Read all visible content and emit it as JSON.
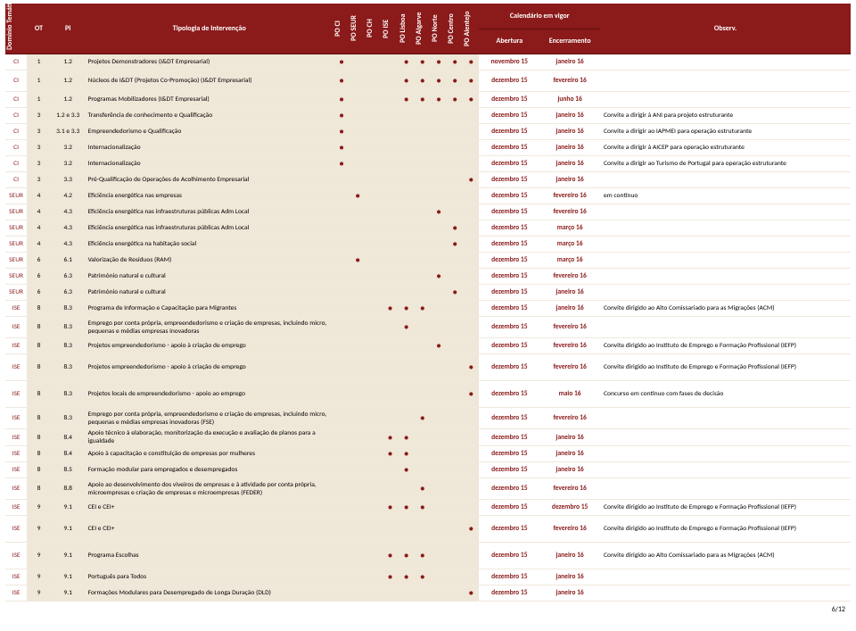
{
  "headers": {
    "dominio": "Domínio Temático",
    "ot": "OT",
    "pi": "PI",
    "tipologia": "Tipologia de Intervenção",
    "po": [
      "PO CI",
      "PO SEUR",
      "PO CH",
      "PO ISE",
      "PO Lisboa",
      "PO Algarve",
      "PO Norte",
      "PO Centro",
      "PO Alentejo"
    ],
    "calendario": "Calendário em vigor",
    "abertura": "Abertura",
    "encerramento": "Encerramento",
    "observ": "Observ."
  },
  "rows": [
    {
      "d": "CI",
      "ot": "1",
      "pi": "1.2",
      "tip": "Projetos Demonstradores (I&DT Empresarial)",
      "po": [
        1,
        0,
        0,
        0,
        1,
        1,
        1,
        1,
        1
      ],
      "ab": "novembro 15",
      "en": "janeiro 16",
      "obs": ""
    },
    {
      "d": "CI",
      "ot": "1",
      "pi": "1.2",
      "tip": "Núcleos de I&DT\n(Projetos  Co-Promoção)  (I&DT Empresarial)",
      "po": [
        1,
        0,
        0,
        0,
        1,
        1,
        1,
        1,
        1
      ],
      "ab": "dezembro 15",
      "en": "fevereiro 16",
      "obs": "",
      "tall": 1
    },
    {
      "d": "CI",
      "ot": "1",
      "pi": "1.2",
      "tip": "Programas Mobilizadores (I&DT Empresarial)",
      "po": [
        1,
        0,
        0,
        0,
        1,
        1,
        1,
        1,
        1
      ],
      "ab": "dezembro 15",
      "en": "junho 16",
      "obs": ""
    },
    {
      "d": "CI",
      "ot": "3",
      "pi": "1.2 e 3.3",
      "tip": "Transferência de conhecimento e Qualificação",
      "po": [
        1,
        0,
        0,
        0,
        0,
        0,
        0,
        0,
        0
      ],
      "ab": "dezembro 15",
      "en": "janeiro 16",
      "obs": "Convite a dirigir à ANI para projeto estruturante"
    },
    {
      "d": "CI",
      "ot": "3",
      "pi": "3.1 e 3.3",
      "tip": "Empreendedorismo e Qualificação",
      "po": [
        1,
        0,
        0,
        0,
        0,
        0,
        0,
        0,
        0
      ],
      "ab": "dezembro 15",
      "en": "janeiro 16",
      "obs": "Convite a dirigir ao IAPMEI para operação estruturante"
    },
    {
      "d": "CI",
      "ot": "3",
      "pi": "3.2",
      "tip": "Internacionalização",
      "po": [
        1,
        0,
        0,
        0,
        0,
        0,
        0,
        0,
        0
      ],
      "ab": "dezembro 15",
      "en": "janeiro 16",
      "obs": "Convite a dirigir à AICEP para operação estruturante"
    },
    {
      "d": "CI",
      "ot": "3",
      "pi": "3.2",
      "tip": "Internacionalização",
      "po": [
        1,
        0,
        0,
        0,
        0,
        0,
        0,
        0,
        0
      ],
      "ab": "dezembro 15",
      "en": "janeiro 16",
      "obs": "Convite a dirigir ao Turismo de Portugal para operação estruturante"
    },
    {
      "d": "CI",
      "ot": "3",
      "pi": "3.3",
      "tip": "Pré-Qualificação de Operações de Acolhimento Empresarial",
      "po": [
        0,
        0,
        0,
        0,
        0,
        0,
        0,
        0,
        1
      ],
      "ab": "dezembro 15",
      "en": "janeiro 16",
      "obs": ""
    },
    {
      "d": "SEUR",
      "ot": "4",
      "pi": "4.2",
      "tip": "Eficiência energética nas empresas",
      "po": [
        0,
        1,
        0,
        0,
        0,
        0,
        0,
        0,
        0
      ],
      "ab": "dezembro 15",
      "en": "fevereiro 16",
      "obs": "em contínuo"
    },
    {
      "d": "SEUR",
      "ot": "4",
      "pi": "4.3",
      "tip": "Eficiência energética nas infraestruturas públicas Adm Local",
      "po": [
        0,
        0,
        0,
        0,
        0,
        0,
        1,
        0,
        0
      ],
      "ab": "dezembro 15",
      "en": "fevereiro 16",
      "obs": ""
    },
    {
      "d": "SEUR",
      "ot": "4",
      "pi": "4.3",
      "tip": "Eficiência energética nas infraestruturas públicas Adm Local",
      "po": [
        0,
        0,
        0,
        0,
        0,
        0,
        0,
        1,
        0
      ],
      "ab": "dezembro 15",
      "en": "março 16",
      "obs": ""
    },
    {
      "d": "SEUR",
      "ot": "4",
      "pi": "4.3",
      "tip": "Eficiência energética na habitação social",
      "po": [
        0,
        0,
        0,
        0,
        0,
        0,
        0,
        1,
        0
      ],
      "ab": "dezembro 15",
      "en": "março 16",
      "obs": ""
    },
    {
      "d": "SEUR",
      "ot": "6",
      "pi": "6.1",
      "tip": "Valorização de Resíduos (RAM)",
      "po": [
        0,
        1,
        0,
        0,
        0,
        0,
        0,
        0,
        0
      ],
      "ab": "dezembro 15",
      "en": "março 16",
      "obs": ""
    },
    {
      "d": "SEUR",
      "ot": "6",
      "pi": "6.3",
      "tip": "Património natural e cultural",
      "po": [
        0,
        0,
        0,
        0,
        0,
        0,
        1,
        0,
        0
      ],
      "ab": "dezembro 15",
      "en": "fevereiro 16",
      "obs": ""
    },
    {
      "d": "SEUR",
      "ot": "6",
      "pi": "6.3",
      "tip": "Património natural e cultural",
      "po": [
        0,
        0,
        0,
        0,
        0,
        0,
        0,
        1,
        0
      ],
      "ab": "dezembro 15",
      "en": "janeiro 16",
      "obs": ""
    },
    {
      "d": "ISE",
      "ot": "8",
      "pi": "8.3",
      "tip": "Programa de Informação e Capacitação para Migrantes",
      "po": [
        0,
        0,
        0,
        1,
        1,
        1,
        0,
        0,
        0
      ],
      "ab": "dezembro 15",
      "en": "janeiro 16",
      "obs": "Convite dirigido ao Alto Comissariado para as Migrações (ACM)"
    },
    {
      "d": "ISE",
      "ot": "8",
      "pi": "8.3",
      "tip": "Emprego por conta própria, empreendedorismo e criação de empresas, incluindo micro, pequenas e médias empresas inovadoras",
      "po": [
        0,
        0,
        0,
        0,
        1,
        0,
        0,
        0,
        0
      ],
      "ab": "dezembro 15",
      "en": "fevereiro 16",
      "obs": "",
      "tall": 1
    },
    {
      "d": "ISE",
      "ot": "8",
      "pi": "8.3",
      "tip": "Projetos empreendedorismo - apoio à criação de emprego",
      "po": [
        0,
        0,
        0,
        0,
        0,
        0,
        1,
        0,
        0
      ],
      "ab": "dezembro 15",
      "en": "fevereiro 16",
      "obs": "Convite dirigido ao Instituto de Emprego e Formação Profissional (IEFP)"
    },
    {
      "d": "ISE",
      "ot": "8",
      "pi": "8.3",
      "tip": "Projetos empreendedorismo - apoio à criação de emprego",
      "po": [
        0,
        0,
        0,
        0,
        0,
        0,
        0,
        0,
        1
      ],
      "ab": "dezembro 15",
      "en": "fevereiro 16",
      "obs": "Convite dirigido ao Instituto de Emprego e Formação Profissional (IEFP)",
      "tall": 2
    },
    {
      "d": "ISE",
      "ot": "8",
      "pi": "8.3",
      "tip": "Projetos locais de empreendedorismo - apoio ao emprego",
      "po": [
        0,
        0,
        0,
        0,
        0,
        0,
        0,
        0,
        1
      ],
      "ab": "dezembro 15",
      "en": "maio 16",
      "obs": "Concurso em contínuo com fases de decisão",
      "tall": 2
    },
    {
      "d": "ISE",
      "ot": "8",
      "pi": "8.3",
      "tip": "Emprego por conta própria, empreendedorismo e criação de empresas, incluindo micro, pequenas e médias empresas inovadoras (FSE)",
      "po": [
        0,
        0,
        0,
        0,
        0,
        1,
        0,
        0,
        0
      ],
      "ab": "dezembro 15",
      "en": "fevereiro 16",
      "obs": "",
      "tall": 1
    },
    {
      "d": "ISE",
      "ot": "8",
      "pi": "8.4",
      "tip": "Apoio técnico à elaboração, monitorização da execução e avaliação de planos para a igualdade",
      "po": [
        0,
        0,
        0,
        1,
        1,
        0,
        0,
        0,
        0
      ],
      "ab": "dezembro 15",
      "en": "janeiro 16",
      "obs": ""
    },
    {
      "d": "ISE",
      "ot": "8",
      "pi": "8.4",
      "tip": "Apoio à capacitação e constituição de empresas por mulheres",
      "po": [
        0,
        0,
        0,
        1,
        1,
        0,
        0,
        0,
        0
      ],
      "ab": "dezembro 15",
      "en": "janeiro 16",
      "obs": ""
    },
    {
      "d": "ISE",
      "ot": "8",
      "pi": "8.5",
      "tip": "Formação modular para empregados e desempregados",
      "po": [
        0,
        0,
        0,
        0,
        1,
        0,
        0,
        0,
        0
      ],
      "ab": "dezembro 15",
      "en": "janeiro 16",
      "obs": ""
    },
    {
      "d": "ISE",
      "ot": "8",
      "pi": "8.8",
      "tip": "Apoio ao desenvolvimento dos viveiros de empresas e à atividade por conta própria, microempresas e criação de empresas e microempresas (FEDER)",
      "po": [
        0,
        0,
        0,
        0,
        0,
        1,
        0,
        0,
        0
      ],
      "ab": "dezembro 15",
      "en": "fevereiro 16",
      "obs": "",
      "tall": 1
    },
    {
      "d": "ISE",
      "ot": "9",
      "pi": "9.1",
      "tip": "CEI e CEI+",
      "po": [
        0,
        0,
        0,
        1,
        1,
        1,
        0,
        0,
        0
      ],
      "ab": "dezembro 15",
      "en": "dezembro 15",
      "obs": "Convite dirigido ao Instituto de Emprego e Formação Profissional (IEFP)"
    },
    {
      "d": "ISE",
      "ot": "9",
      "pi": "9.1",
      "tip": "CEI e CEI+",
      "po": [
        0,
        0,
        0,
        0,
        0,
        0,
        0,
        0,
        1
      ],
      "ab": "dezembro 15",
      "en": "fevereiro 16",
      "obs": "Convite dirigido ao Instituto de Emprego e Formação Profissional (IEFP)",
      "tall": 2
    },
    {
      "d": "ISE",
      "ot": "9",
      "pi": "9.1",
      "tip": "Programa Escolhas",
      "po": [
        0,
        0,
        0,
        1,
        1,
        1,
        0,
        0,
        0
      ],
      "ab": "dezembro 15",
      "en": "janeiro 16",
      "obs": "Convite dirigido ao Alto Comissariado para as Migrações (ACM)",
      "tall": 2
    },
    {
      "d": "ISE",
      "ot": "9",
      "pi": "9.1",
      "tip": "Português para Todos",
      "po": [
        0,
        0,
        0,
        1,
        1,
        1,
        0,
        0,
        0
      ],
      "ab": "dezembro 15",
      "en": "janeiro 16",
      "obs": ""
    },
    {
      "d": "ISE",
      "ot": "9",
      "pi": "9.1",
      "tip": "Formações Modulares para Desempregado de Longa Duração (DLD)",
      "po": [
        0,
        0,
        0,
        0,
        0,
        0,
        0,
        0,
        1
      ],
      "ab": "dezembro 15",
      "en": "janeiro 16",
      "obs": ""
    }
  ],
  "page": "6/12"
}
